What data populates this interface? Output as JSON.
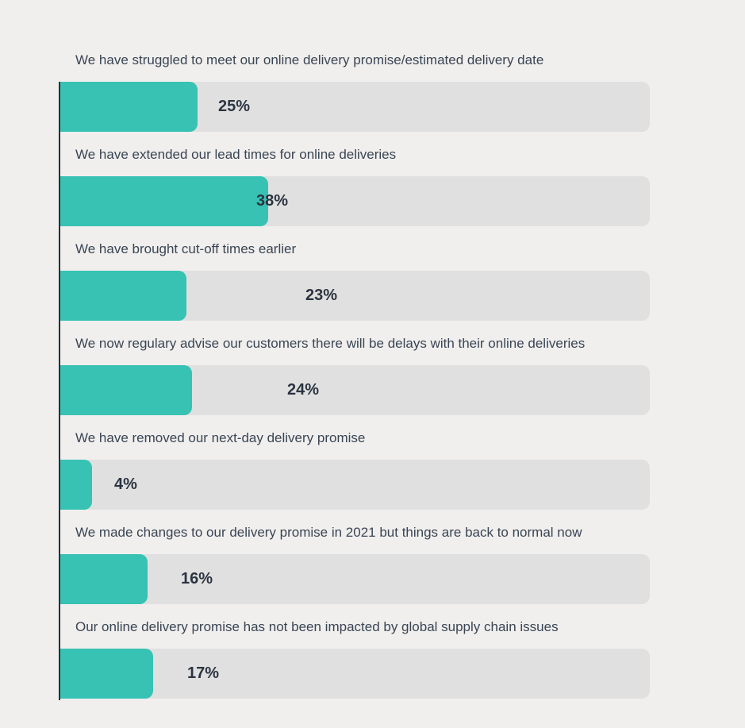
{
  "colors": {
    "bar_fill": "#37c2b4",
    "track": "#e0e0e0",
    "axis": "#232f3e",
    "text": "#3a4553",
    "value_text": "#2b3440"
  },
  "chart_data": {
    "type": "bar",
    "orientation": "horizontal",
    "unit": "%",
    "xlim": [
      0,
      100
    ],
    "grid": false,
    "categories": [
      "We have struggled to meet our online delivery promise/estimated delivery date",
      "We have extended our lead times for online deliveries",
      "We have brought cut-off times earlier",
      "We now regulary advise our customers there will be delays with their online deliveries",
      "We have removed our next-day delivery promise",
      "We made changes to our delivery promise in 2021 but things are back to normal now",
      "Our online delivery promise has not been impacted by global supply chain issues"
    ],
    "values": [
      25,
      38,
      23,
      24,
      4,
      16,
      17
    ],
    "value_labels": [
      "25%",
      "38%",
      "23%",
      "24%",
      "4%",
      "16%",
      "17%"
    ]
  }
}
